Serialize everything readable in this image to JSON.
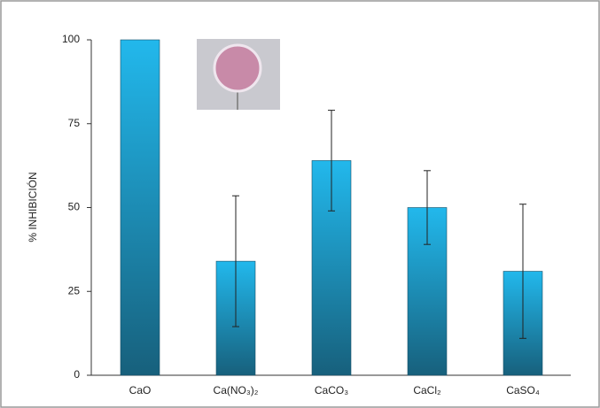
{
  "chart_data": {
    "type": "bar",
    "ylabel": "% INHIBICIÓN",
    "categories": [
      "CaO",
      "Ca(NO₃)₂",
      "CaCO₃",
      "CaCl₂",
      "CaSO₄"
    ],
    "values": [
      100,
      34,
      64,
      50,
      31
    ],
    "errors": [
      0,
      19.5,
      15,
      11,
      20
    ],
    "color": "#22b8ec",
    "ylim": [
      0,
      100
    ],
    "yticks": [
      0,
      25,
      50,
      75,
      100
    ],
    "grid": false
  }
}
